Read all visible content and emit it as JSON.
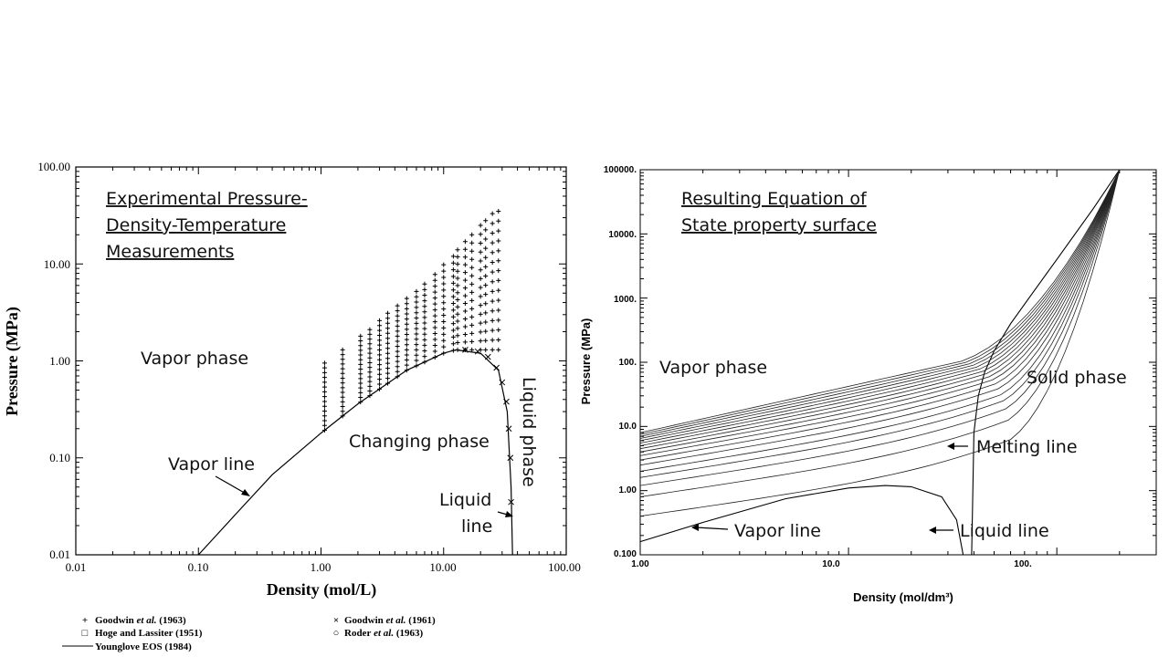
{
  "chart_data": [
    {
      "type": "scatter",
      "title": "Experimental Pressure-Density-Temperature Measurements",
      "title_lines": [
        "Experimental Pressure-",
        "Density-Temperature",
        "Measurements"
      ],
      "xlabel": "Density (mol/L)",
      "ylabel": "Pressure (MPa)",
      "xscale": "log",
      "yscale": "log",
      "xlim": [
        0.01,
        100
      ],
      "ylim": [
        0.01,
        100
      ],
      "xticks": [
        "0.01",
        "0.10",
        "1.00",
        "10.00",
        "100.00"
      ],
      "yticks": [
        "0.01",
        "0.10",
        "1.00",
        "10.00",
        "100.00"
      ],
      "annotations": {
        "vapor_phase": "Vapor phase",
        "changing_phase": "Changing phase",
        "liquid_phase": "Liquid phase",
        "vapor_line": "Vapor line",
        "liquid_line_1": "Liquid",
        "liquid_line_2": "line"
      },
      "legend_placement": "bottom",
      "legend": [
        {
          "marker": "+",
          "author": "Goodwin",
          "etal": " et al.",
          "year": " (1963)"
        },
        {
          "marker": "×",
          "author": "Goodwin",
          "etal": " et al.",
          "year": " (1961)"
        },
        {
          "marker": "□",
          "author": "Hoge and Lassiter",
          "etal": "",
          "year": " (1951)"
        },
        {
          "marker": "○",
          "author": "Roder",
          "etal": " et al.",
          "year": " (1963)"
        },
        {
          "marker": "—",
          "author": "Younglove EOS",
          "etal": "",
          "year": " (1984)"
        }
      ],
      "series": [
        {
          "name": "Younglove EOS (1984) vapor line",
          "x": [
            0.1,
            0.2,
            0.4,
            1.0,
            2.0,
            5.0,
            10.0,
            12.5
          ],
          "y": [
            0.01,
            0.026,
            0.067,
            0.18,
            0.36,
            0.8,
            1.2,
            1.3
          ]
        },
        {
          "name": "Younglove EOS (1984) liquid line",
          "x": [
            12.5,
            20.0,
            28.0,
            33.0,
            35.5,
            36.5
          ],
          "y": [
            1.3,
            1.2,
            0.8,
            0.3,
            0.05,
            0.01
          ]
        },
        {
          "name": "Goodwin et al. (1963) isochores",
          "x": [
            1.07,
            1.5,
            2.1,
            2.5,
            3.0,
            3.5,
            4.2,
            5.0,
            6.0,
            7.0,
            8.5,
            10.0,
            12.0,
            13.0,
            15.0,
            17.0,
            20.0,
            22.0,
            25.0,
            28.0
          ],
          "y_top": [
            0.95,
            1.3,
            1.8,
            2.1,
            2.6,
            3.1,
            3.7,
            4.4,
            5.2,
            6.2,
            7.8,
            9.8,
            12.0,
            14.0,
            17.0,
            20.0,
            25.0,
            28.0,
            33.0,
            35.0
          ]
        },
        {
          "name": "Goodwin et al. (1961) saturated liquid",
          "x": [
            15.0,
            19.0,
            23.0,
            27.0,
            30.0,
            32.5,
            34.0,
            35.0,
            35.5
          ],
          "y": [
            1.3,
            1.25,
            1.1,
            0.85,
            0.6,
            0.38,
            0.2,
            0.1,
            0.035
          ]
        }
      ]
    },
    {
      "type": "line",
      "title": "Resulting Equation of State property surface",
      "title_lines": [
        "Resulting Equation of",
        "State property surface"
      ],
      "xlabel": "Density (mol/dm³)",
      "ylabel": "Pressure (MPa)",
      "xscale": "log",
      "yscale": "log",
      "xlim": [
        1,
        300
      ],
      "ylim": [
        0.1,
        100000
      ],
      "xticks": [
        "1.00",
        "10.0",
        "100."
      ],
      "yticks": [
        "0.100",
        "1.00",
        "10.0",
        "100.",
        "1000.",
        "10000.",
        "100000."
      ],
      "annotations": {
        "vapor_phase": "Vapor phase",
        "solid_phase": "Solid phase",
        "melting_line": "Melting line",
        "vapor_line": "Vapor line",
        "liquid_line": "Liquid line"
      },
      "series": [
        {
          "name": "Vapor line",
          "x": [
            1,
            2,
            5,
            10,
            15,
            20,
            28,
            33,
            35.5
          ],
          "y": [
            0.16,
            0.32,
            0.75,
            1.1,
            1.2,
            1.15,
            0.8,
            0.35,
            0.1
          ]
        },
        {
          "name": "Melting line",
          "x": [
            39,
            40,
            42,
            45,
            50,
            60,
            75,
            100,
            150,
            200
          ],
          "y": [
            0.1,
            8,
            30,
            70,
            150,
            400,
            1100,
            4000,
            25000,
            100000
          ]
        },
        {
          "name": "Isotherms",
          "x_start": 1,
          "y_start": [
            0.4,
            0.8,
            1.2,
            1.6,
            2.0,
            2.5,
            3.0,
            3.5,
            4.0,
            4.5,
            5.0,
            5.5,
            6.0,
            6.5,
            7.0,
            7.5,
            8.0
          ],
          "x_end": 200,
          "y_end": 100000
        }
      ]
    }
  ]
}
